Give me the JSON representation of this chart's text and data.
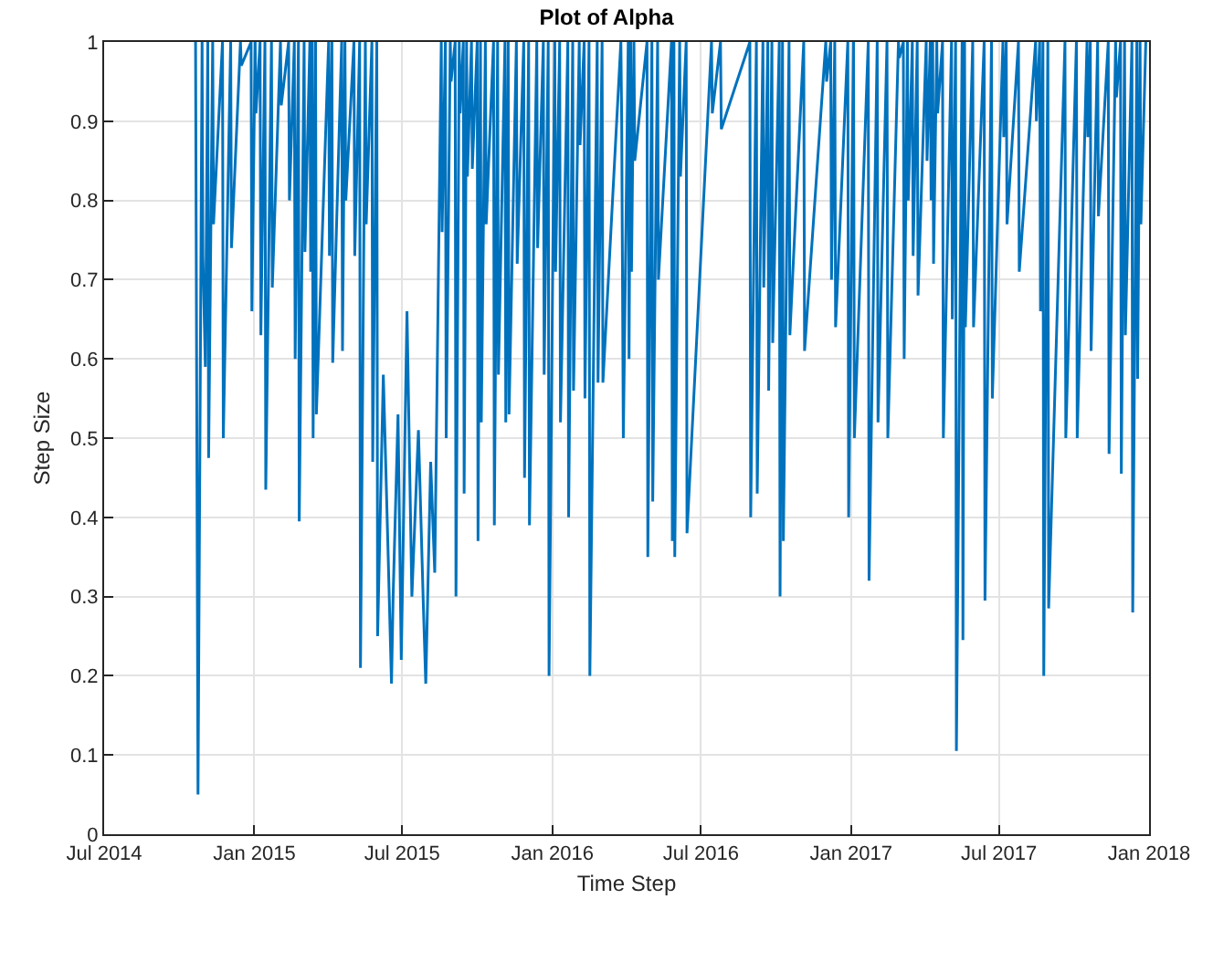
{
  "chart_data": {
    "type": "line",
    "title": "Plot of Alpha",
    "xlabel": "Time Step",
    "ylabel": "Step Size",
    "xlim": [
      "2014-07-01",
      "2018-01-01"
    ],
    "xticks": [
      {
        "value": "2014-07-01",
        "label": "Jul 2014"
      },
      {
        "value": "2015-01-01",
        "label": "Jan 2015"
      },
      {
        "value": "2015-07-01",
        "label": "Jul 2015"
      },
      {
        "value": "2016-01-01",
        "label": "Jan 2016"
      },
      {
        "value": "2016-07-01",
        "label": "Jul 2016"
      },
      {
        "value": "2017-01-01",
        "label": "Jan 2017"
      },
      {
        "value": "2017-07-01",
        "label": "Jul 2017"
      },
      {
        "value": "2018-01-01",
        "label": "Jan 2018"
      }
    ],
    "ylim": [
      0,
      1
    ],
    "yticks": [
      0,
      0.1,
      0.2,
      0.3,
      0.4,
      0.5,
      0.6,
      0.7,
      0.8,
      0.9,
      1
    ],
    "grid": true,
    "series": [
      {
        "color": "#0072bd",
        "x": [
          "2014-10-21",
          "2014-10-24",
          "2014-10-29",
          "2014-10-30",
          "2014-11-02",
          "2014-11-05",
          "2014-11-06",
          "2014-11-11",
          "2014-11-12",
          "2014-11-23",
          "2014-11-24",
          "2014-12-03",
          "2014-12-04",
          "2014-12-15",
          "2014-12-16",
          "2014-12-28",
          "2014-12-29",
          "2015-01-02",
          "2015-01-03",
          "2015-01-08",
          "2015-01-09",
          "2015-01-14",
          "2015-01-15",
          "2015-01-22",
          "2015-01-23",
          "2015-02-02",
          "2015-02-03",
          "2015-02-12",
          "2015-02-13",
          "2015-02-19",
          "2015-02-20",
          "2015-02-24",
          "2015-02-25",
          "2015-03-03",
          "2015-03-04",
          "2015-03-10",
          "2015-03-11",
          "2015-03-13",
          "2015-03-14",
          "2015-03-17",
          "2015-03-18",
          "2015-04-02",
          "2015-04-03",
          "2015-04-06",
          "2015-04-07",
          "2015-04-18",
          "2015-04-19",
          "2015-04-22",
          "2015-04-23",
          "2015-05-03",
          "2015-05-04",
          "2015-05-10",
          "2015-05-11",
          "2015-05-17",
          "2015-05-18",
          "2015-05-25",
          "2015-05-26",
          "2015-05-31",
          "2015-06-01",
          "2015-06-08",
          "2015-06-14",
          "2015-06-18",
          "2015-06-20",
          "2015-06-26",
          "2015-06-30",
          "2015-07-07",
          "2015-07-13",
          "2015-07-21",
          "2015-07-27",
          "2015-07-30",
          "2015-08-05",
          "2015-08-10",
          "2015-08-18",
          "2015-08-19",
          "2015-08-23",
          "2015-08-24",
          "2015-08-29",
          "2015-08-30",
          "2015-09-04",
          "2015-09-05",
          "2015-09-09",
          "2015-09-10",
          "2015-09-14",
          "2015-09-15",
          "2015-09-18",
          "2015-09-19",
          "2015-09-24",
          "2015-09-25",
          "2015-10-01",
          "2015-10-02",
          "2015-10-05",
          "2015-10-06",
          "2015-10-11",
          "2015-10-12",
          "2015-10-21",
          "2015-10-22",
          "2015-10-26",
          "2015-10-27",
          "2015-11-04",
          "2015-11-05",
          "2015-11-08",
          "2015-11-09",
          "2015-11-18",
          "2015-11-19",
          "2015-11-27",
          "2015-11-28",
          "2015-12-03",
          "2015-12-04",
          "2015-12-13",
          "2015-12-14",
          "2015-12-21",
          "2015-12-22",
          "2015-12-27",
          "2015-12-28",
          "2016-01-04",
          "2016-01-05",
          "2016-01-10",
          "2016-01-11",
          "2016-01-20",
          "2016-01-21",
          "2016-01-26",
          "2016-01-27",
          "2016-02-03",
          "2016-02-04",
          "2016-02-09",
          "2016-02-10",
          "2016-02-15",
          "2016-02-16",
          "2016-02-25",
          "2016-02-26",
          "2016-03-02",
          "2016-03-03",
          "2016-03-25",
          "2016-03-26",
          "2016-03-28",
          "2016-04-03",
          "2016-04-04",
          "2016-04-06",
          "2016-04-07",
          "2016-04-10",
          "2016-04-11",
          "2016-04-26",
          "2016-04-27",
          "2016-05-02",
          "2016-05-03",
          "2016-05-09",
          "2016-05-10",
          "2016-05-26",
          "2016-05-27",
          "2016-05-29",
          "2016-05-30",
          "2016-06-05",
          "2016-06-06",
          "2016-06-13",
          "2016-06-14",
          "2016-07-14",
          "2016-07-15",
          "2016-07-25",
          "2016-07-26",
          "2016-08-30",
          "2016-08-31",
          "2016-09-07",
          "2016-09-08",
          "2016-09-15",
          "2016-09-16",
          "2016-09-21",
          "2016-09-22",
          "2016-09-26",
          "2016-09-27",
          "2016-10-05",
          "2016-10-06",
          "2016-10-09",
          "2016-10-10",
          "2016-10-17",
          "2016-10-18",
          "2016-11-04",
          "2016-11-05",
          "2016-12-01",
          "2016-12-02",
          "2016-12-07",
          "2016-12-08",
          "2016-12-12",
          "2016-12-13",
          "2016-12-28",
          "2016-12-29",
          "2017-01-04",
          "2017-01-05",
          "2017-01-22",
          "2017-01-23",
          "2017-02-02",
          "2017-02-03",
          "2017-02-14",
          "2017-02-15",
          "2017-02-28",
          "2017-03-01",
          "2017-03-06",
          "2017-03-07",
          "2017-03-11",
          "2017-03-12",
          "2017-03-17",
          "2017-03-18",
          "2017-03-23",
          "2017-03-24",
          "2017-04-03",
          "2017-04-04",
          "2017-04-08",
          "2017-04-09",
          "2017-04-11",
          "2017-04-12",
          "2017-04-16",
          "2017-04-17",
          "2017-04-23",
          "2017-04-24",
          "2017-05-04",
          "2017-05-05",
          "2017-05-09",
          "2017-05-10",
          "2017-05-17",
          "2017-05-18",
          "2017-05-20",
          "2017-05-21",
          "2017-05-30",
          "2017-05-31",
          "2017-06-13",
          "2017-06-14",
          "2017-06-22",
          "2017-06-23",
          "2017-07-06",
          "2017-07-07",
          "2017-07-10",
          "2017-07-11",
          "2017-07-25",
          "2017-07-26",
          "2017-08-15",
          "2017-08-16",
          "2017-08-20",
          "2017-08-21",
          "2017-08-24",
          "2017-08-25",
          "2017-08-30",
          "2017-08-31",
          "2017-09-20",
          "2017-09-21",
          "2017-10-04",
          "2017-10-05",
          "2017-10-17",
          "2017-10-18",
          "2017-10-21",
          "2017-10-22",
          "2017-10-30",
          "2017-10-31",
          "2017-11-12",
          "2017-11-13",
          "2017-11-21",
          "2017-11-22",
          "2017-11-27",
          "2017-11-28",
          "2017-12-02",
          "2017-12-03",
          "2017-12-11",
          "2017-12-12",
          "2017-12-17",
          "2017-12-18",
          "2017-12-21",
          "2017-12-22",
          "2017-12-28"
        ],
        "values": [
          1,
          0.05,
          1,
          0.73,
          0.59,
          1,
          0.475,
          1,
          0.77,
          1,
          0.5,
          1,
          0.74,
          1,
          0.97,
          1,
          0.66,
          1,
          0.91,
          1,
          0.63,
          1,
          0.435,
          1,
          0.69,
          1,
          0.92,
          1,
          0.8,
          1,
          0.6,
          1,
          0.395,
          1,
          0.735,
          1,
          0.71,
          1,
          0.5,
          1,
          0.53,
          1,
          0.73,
          1,
          0.595,
          1,
          0.61,
          1,
          0.8,
          1,
          0.73,
          1,
          0.21,
          1,
          0.77,
          1,
          0.47,
          1,
          0.25,
          0.58,
          0.35,
          0.19,
          0.3,
          0.53,
          0.22,
          0.66,
          0.3,
          0.51,
          0.29,
          0.19,
          0.47,
          0.33,
          1,
          0.76,
          1,
          0.5,
          1,
          0.95,
          1,
          0.3,
          1,
          0.91,
          1,
          0.43,
          1,
          0.83,
          1,
          0.84,
          1,
          0.37,
          1,
          0.52,
          1,
          0.77,
          1,
          0.39,
          1,
          0.58,
          1,
          0.52,
          1,
          0.53,
          1,
          0.72,
          1,
          0.45,
          1,
          0.39,
          1,
          0.74,
          1,
          0.58,
          1,
          0.2,
          1,
          0.71,
          1,
          0.52,
          1,
          0.4,
          1,
          0.56,
          1,
          0.87,
          1,
          0.55,
          1,
          0.2,
          1,
          0.57,
          1,
          0.57,
          1,
          0.9,
          0.5,
          1,
          0.6,
          1,
          0.71,
          1,
          0.85,
          1,
          0.35,
          1,
          0.42,
          1,
          0.7,
          1,
          0.37,
          1,
          0.35,
          1,
          0.83,
          1,
          0.38,
          1,
          0.91,
          1,
          0.89,
          1,
          0.4,
          1,
          0.43,
          1,
          0.69,
          1,
          0.56,
          1,
          0.62,
          1,
          0.3,
          1,
          0.37,
          1,
          0.63,
          1,
          0.61,
          1,
          0.95,
          1,
          0.7,
          1,
          0.64,
          1,
          0.4,
          1,
          0.5,
          1,
          0.32,
          1,
          0.52,
          1,
          0.5,
          1,
          0.98,
          1,
          0.6,
          1,
          0.8,
          1,
          0.73,
          1,
          0.68,
          1,
          0.85,
          1,
          0.8,
          1,
          0.72,
          1,
          0.91,
          1,
          0.5,
          1,
          0.65,
          1,
          0.105,
          1,
          0.245,
          1,
          0.64,
          1,
          0.64,
          1,
          0.295,
          1,
          0.55,
          1,
          0.88,
          1,
          0.77,
          1,
          0.71,
          1,
          0.9,
          1,
          0.66,
          1,
          0.2,
          1,
          0.285,
          1,
          0.5,
          1,
          0.5,
          1,
          0.88,
          1,
          0.61,
          1,
          0.78,
          1,
          0.48,
          1,
          0.93,
          1,
          0.455,
          1,
          0.63,
          1,
          0.28,
          1,
          0.575,
          1,
          0.77,
          1
        ]
      }
    ]
  }
}
